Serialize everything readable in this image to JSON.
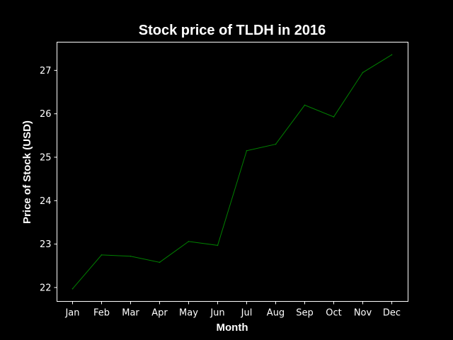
{
  "chart_data": {
    "type": "line",
    "title": "Stock price of TLDH in 2016",
    "xlabel": "Month",
    "ylabel": "Price of Stock (USD)",
    "categories": [
      "Jan",
      "Feb",
      "Mar",
      "Apr",
      "May",
      "Jun",
      "Jul",
      "Aug",
      "Sep",
      "Oct",
      "Nov",
      "Dec"
    ],
    "series": [
      {
        "values": [
          21.97,
          22.75,
          22.72,
          22.58,
          23.06,
          22.97,
          25.15,
          25.3,
          26.2,
          25.93,
          26.95,
          27.36
        ]
      }
    ],
    "ylim": [
      21.68,
      27.65
    ],
    "yticks": [
      "22",
      "23",
      "24",
      "25",
      "26",
      "27"
    ],
    "grid": false,
    "legend": "none",
    "colors": {
      "background": "#000000",
      "line": "#008000",
      "axes": "#ffffff",
      "text": "#ffffff"
    }
  }
}
